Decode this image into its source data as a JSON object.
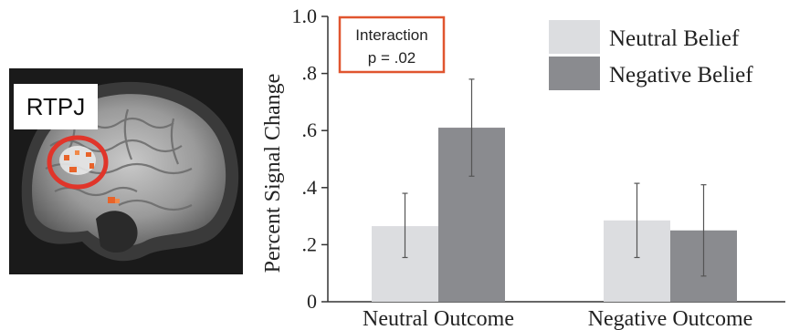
{
  "brain_panel": {
    "region_label": "RTPJ"
  },
  "annotation": {
    "line1": "Interaction",
    "line2": "p = .02",
    "border_color": "#e0552f"
  },
  "chart_data": {
    "type": "bar",
    "categories": [
      "Neutral Outcome",
      "Negative Outcome"
    ],
    "series": [
      {
        "name": "Neutral Belief",
        "color": "#dcdde0",
        "values": [
          0.265,
          0.285
        ],
        "error_low": [
          0.155,
          0.155
        ],
        "error_high": [
          0.38,
          0.415
        ]
      },
      {
        "name": "Negative Belief",
        "color": "#8a8b8f",
        "values": [
          0.61,
          0.25
        ],
        "error_low": [
          0.44,
          0.09
        ],
        "error_high": [
          0.78,
          0.41
        ]
      }
    ],
    "ylabel": "Percent Signal Change",
    "ylim": [
      0,
      1.0
    ],
    "yticks": [
      0,
      0.2,
      0.4,
      0.6,
      0.8,
      1.0
    ],
    "ytick_labels": [
      "0",
      ".2",
      ".4",
      ".6",
      ".8",
      "1.0"
    ],
    "legend_position": "top-right",
    "grid": false
  }
}
